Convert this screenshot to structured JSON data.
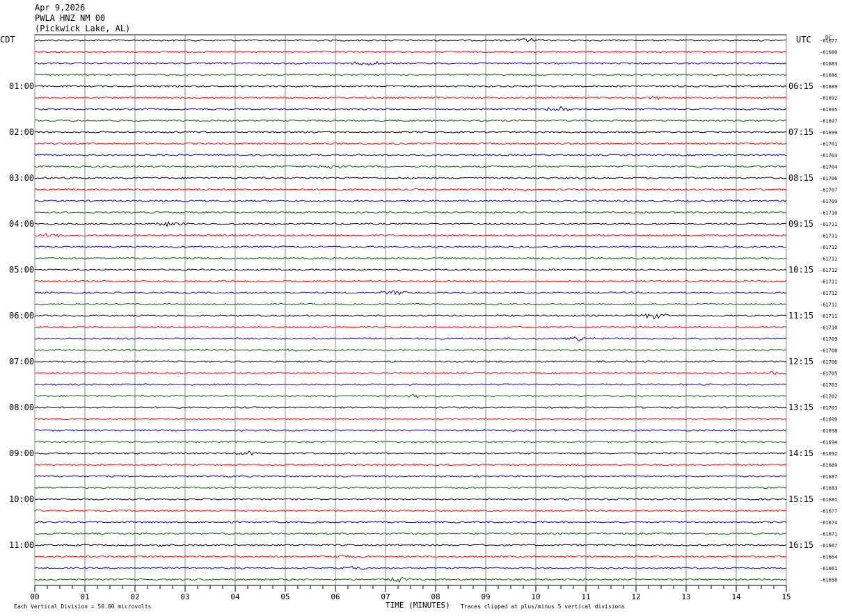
{
  "header": {
    "date": "Apr 9,2026",
    "station": "PWLA HNZ NM 00",
    "location": "(Pickwick Lake, AL)"
  },
  "labels": {
    "left_tz": "CDT",
    "right_tz": "UTC",
    "dc": "DC",
    "footer_left": "Each Vertical Division =   50.00 microvolts",
    "footer_mid": "TIME (MINUTES)",
    "footer_right": "Traces clipped at plus/minus 5 vertical divisions"
  },
  "chart_data": {
    "type": "line",
    "title": "",
    "xlabel": "TIME (MINUTES)",
    "ylabel": "",
    "xlim": [
      0,
      15
    ],
    "x_ticks": [
      "00",
      "01",
      "02",
      "03",
      "04",
      "05",
      "06",
      "07",
      "08",
      "09",
      "10",
      "11",
      "12",
      "13",
      "14",
      "15"
    ],
    "trace_colors": [
      "#000000",
      "#ff0000",
      "#0000cc",
      "#006600"
    ],
    "left_hour_labels": [
      "01:00",
      "02:00",
      "03:00",
      "04:00",
      "05:00",
      "06:00",
      "07:00",
      "08:00",
      "09:00",
      "10:00",
      "11:00"
    ],
    "right_hour_labels": [
      "06:15",
      "07:15",
      "08:15",
      "09:15",
      "10:15",
      "11:15",
      "12:15",
      "13:15",
      "14:15",
      "15:15",
      "16:15"
    ],
    "dc_offsets": [
      "-61677",
      "-61680",
      "-61683",
      "-61686",
      "-61689",
      "-61692",
      "-61695",
      "-61697",
      "-61699",
      "-61701",
      "-61703",
      "-61704",
      "-61706",
      "-61707",
      "-61709",
      "-61710",
      "-61711",
      "-61711",
      "-61712",
      "-61711",
      "-61712",
      "-61711",
      "-61712",
      "-61711",
      "-61711",
      "-61710",
      "-61709",
      "-61708",
      "-61706",
      "-61705",
      "-61703",
      "-61702",
      "-61701",
      "-61699",
      "-61698",
      "-61694",
      "-61692",
      "-61689",
      "-61687",
      "-61683",
      "-61681",
      "-61677",
      "-61674",
      "-61671",
      "-61667",
      "-61664",
      "-61661",
      "-61658"
    ],
    "grid": true
  }
}
